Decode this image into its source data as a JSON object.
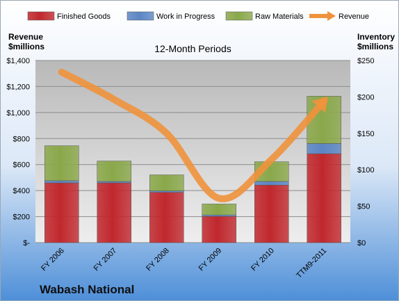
{
  "chart_data": {
    "type": "bar",
    "title": "12-Month Periods",
    "company": "Wabash National",
    "y_left_label": [
      "Revenue",
      "$millions"
    ],
    "y_right_label": [
      "Inventory",
      "$millions"
    ],
    "categories": [
      "FY 2006",
      "FY 2007",
      "FY 2008",
      "FY 2009",
      "FY 2010",
      "TTM9-2011"
    ],
    "stacked": true,
    "series": [
      {
        "name": "Finished Goods",
        "axis": "right",
        "color": "#c0282d",
        "values": [
          82,
          82,
          69,
          36,
          79,
          122
        ]
      },
      {
        "name": "Work in Progress",
        "axis": "right",
        "color": "#5b86c4",
        "values": [
          3,
          2,
          2,
          2,
          5,
          14
        ]
      },
      {
        "name": "Raw Materials",
        "axis": "right",
        "color": "#8aa84a",
        "values": [
          48,
          28,
          22,
          15,
          27,
          65
        ]
      },
      {
        "name": "Revenue",
        "axis": "left",
        "type": "line",
        "color": "#f0923c",
        "values": [
          1310,
          1100,
          840,
          340,
          640,
          1090
        ]
      }
    ],
    "y_left": {
      "min": 0,
      "max": 1400,
      "step": 200,
      "tick_labels": [
        "$-",
        "$200",
        "$400",
        "$600",
        "$800",
        "$1,000",
        "$1,200",
        "$1,400"
      ]
    },
    "y_right": {
      "min": 0,
      "max": 250,
      "step": 50,
      "tick_labels": [
        "$0",
        "$50",
        "$100",
        "$150",
        "$200",
        "$250"
      ]
    },
    "grid": true,
    "legend_position": "top"
  }
}
